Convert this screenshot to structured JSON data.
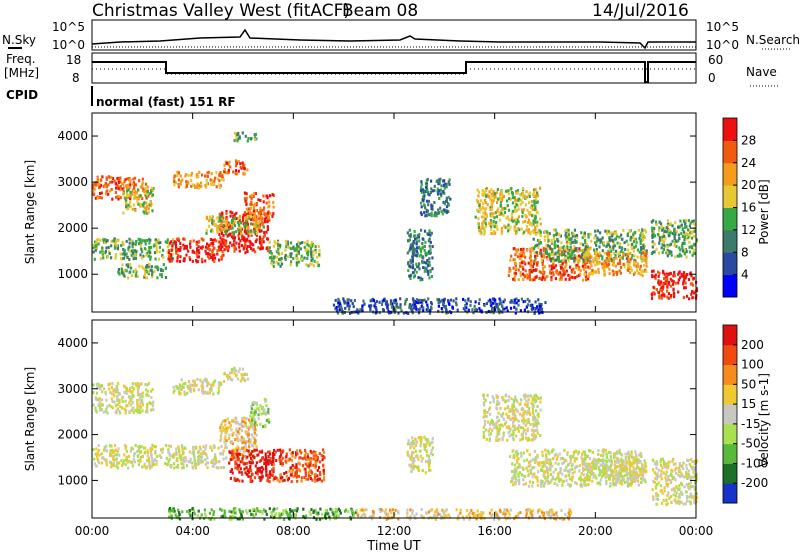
{
  "header": {
    "title": "Christmas Valley West (fitACF)",
    "beam": "Beam 08",
    "date": "14/Jul/2016"
  },
  "params": {
    "nsky_label": "N.Sky",
    "nsky_ticks": [
      "10^5",
      "10^0"
    ],
    "nsearch_label": "N.Search",
    "nsearch_ticks": [
      "10^5",
      "10^0"
    ],
    "freq_label": "Freq.",
    "freq_unit": "[MHz]",
    "freq_ticks": [
      "18",
      "8"
    ],
    "nave_label": "Nave",
    "nave_ticks": [
      "60",
      "0"
    ],
    "cpid_label": "CPID",
    "cpid_value": "normal (fast) 151 RF"
  },
  "colors": {
    "power": [
      "#0000ff",
      "#2a4aa0",
      "#3c7a6a",
      "#38a845",
      "#e8c832",
      "#f59c1c",
      "#f25a10",
      "#ee1010"
    ],
    "velocity": [
      "#1632c8",
      "#1c7028",
      "#58b93a",
      "#a8e050",
      "#c8c8c0",
      "#f0c830",
      "#f58c1c",
      "#f04a10",
      "#e01010"
    ]
  },
  "chart_data": [
    {
      "type": "heatmap",
      "panel": "power",
      "ylabel": "Slant Range [km]",
      "yticks": [
        "1000",
        "2000",
        "3000",
        "4000"
      ],
      "ylim": [
        180,
        4500
      ],
      "xlim": [
        0,
        24
      ],
      "colorbar_label": "Power [dB]",
      "colorbar_ticks": [
        "4",
        "8",
        "12",
        "16",
        "20",
        "24",
        "28"
      ],
      "blobs": [
        {
          "t": [
            0.0,
            2.2
          ],
          "r": [
            2650,
            3150
          ],
          "level": 6
        },
        {
          "t": [
            1.2,
            2.4
          ],
          "r": [
            2350,
            2900
          ],
          "level": 4
        },
        {
          "t": [
            3.2,
            5.2
          ],
          "r": [
            2900,
            3250
          ],
          "level": 5
        },
        {
          "t": [
            5.2,
            6.2
          ],
          "r": [
            3200,
            3500
          ],
          "level": 6
        },
        {
          "t": [
            5.6,
            6.5
          ],
          "r": [
            3900,
            4100
          ],
          "level": 3
        },
        {
          "t": [
            0.0,
            3.2
          ],
          "r": [
            1350,
            1800
          ],
          "level": 3
        },
        {
          "t": [
            3.0,
            5.2
          ],
          "r": [
            1300,
            1800
          ],
          "level": 7
        },
        {
          "t": [
            5.0,
            7.0
          ],
          "r": [
            1500,
            2400
          ],
          "level": 7
        },
        {
          "t": [
            6.0,
            7.2
          ],
          "r": [
            2200,
            2800
          ],
          "level": 6
        },
        {
          "t": [
            7.0,
            9.0
          ],
          "r": [
            1200,
            1750
          ],
          "level": 3
        },
        {
          "t": [
            4.5,
            6.8
          ],
          "r": [
            1900,
            2300
          ],
          "level": 4
        },
        {
          "t": [
            1.0,
            3.0
          ],
          "r": [
            950,
            1250
          ],
          "level": 3
        },
        {
          "t": [
            12.5,
            13.5
          ],
          "r": [
            900,
            2000
          ],
          "level": 2
        },
        {
          "t": [
            13.0,
            14.2
          ],
          "r": [
            2300,
            3100
          ],
          "level": 2
        },
        {
          "t": [
            15.2,
            17.8
          ],
          "r": [
            1900,
            2900
          ],
          "level": 4
        },
        {
          "t": [
            16.5,
            19.8
          ],
          "r": [
            900,
            1600
          ],
          "level": 6
        },
        {
          "t": [
            17.5,
            22.0
          ],
          "r": [
            1300,
            2000
          ],
          "level": 3
        },
        {
          "t": [
            19.5,
            22.0
          ],
          "r": [
            1000,
            1500
          ],
          "level": 5
        },
        {
          "t": [
            22.2,
            24.0
          ],
          "r": [
            500,
            1100
          ],
          "level": 7
        },
        {
          "t": [
            22.2,
            24.0
          ],
          "r": [
            1400,
            2200
          ],
          "level": 3
        },
        {
          "t": [
            9.5,
            18.0
          ],
          "r": [
            180,
            500
          ],
          "level": 1
        }
      ]
    },
    {
      "type": "heatmap",
      "panel": "velocity",
      "ylabel": "Slant Range [km]",
      "yticks": [
        "1000",
        "2000",
        "3000",
        "4000"
      ],
      "ylim": [
        180,
        4500
      ],
      "xlim": [
        0,
        24
      ],
      "xticks": [
        "00:00",
        "04:00",
        "08:00",
        "12:00",
        "16:00",
        "20:00",
        "00:00"
      ],
      "xlabel": "Time UT",
      "colorbar_label": "Velocity [m s-1]",
      "colorbar_ticks": [
        "200",
        "100",
        "50",
        "15",
        "-15",
        "-50",
        "-100",
        "-200"
      ],
      "blobs": [
        {
          "t": [
            0.0,
            2.4
          ],
          "r": [
            2500,
            3150
          ],
          "level": 4
        },
        {
          "t": [
            3.2,
            5.2
          ],
          "r": [
            2900,
            3250
          ],
          "level": 4
        },
        {
          "t": [
            5.2,
            6.2
          ],
          "r": [
            3200,
            3500
          ],
          "level": 4
        },
        {
          "t": [
            0.0,
            5.2
          ],
          "r": [
            1300,
            1800
          ],
          "level": 4
        },
        {
          "t": [
            5.0,
            6.5
          ],
          "r": [
            1500,
            2400
          ],
          "level": 5
        },
        {
          "t": [
            6.2,
            7.0
          ],
          "r": [
            2200,
            2800
          ],
          "level": 3
        },
        {
          "t": [
            5.4,
            7.2
          ],
          "r": [
            1000,
            1700
          ],
          "level": 8
        },
        {
          "t": [
            7.0,
            9.2
          ],
          "r": [
            1000,
            1700
          ],
          "level": 7
        },
        {
          "t": [
            12.5,
            13.5
          ],
          "r": [
            1200,
            2000
          ],
          "level": 4
        },
        {
          "t": [
            15.5,
            17.8
          ],
          "r": [
            1900,
            2900
          ],
          "level": 4
        },
        {
          "t": [
            16.5,
            21.8
          ],
          "r": [
            900,
            1700
          ],
          "level": 4
        },
        {
          "t": [
            19.5,
            22.0
          ],
          "r": [
            1000,
            1500
          ],
          "level": 4
        },
        {
          "t": [
            22.2,
            24.0
          ],
          "r": [
            500,
            1500
          ],
          "level": 4
        },
        {
          "t": [
            3.0,
            10.5
          ],
          "r": [
            180,
            420
          ],
          "level": 2
        },
        {
          "t": [
            10.5,
            19.0
          ],
          "r": [
            180,
            400
          ],
          "level": 5
        }
      ]
    }
  ]
}
